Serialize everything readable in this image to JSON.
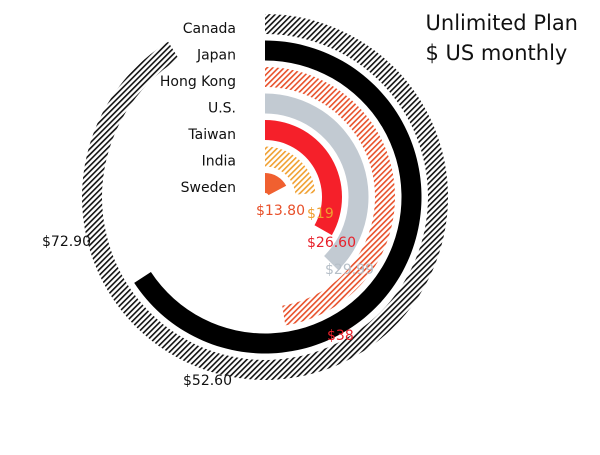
{
  "chart_data": {
    "type": "radial-bar",
    "title": "Unlimited Plan",
    "subtitle": "$ US monthly",
    "scale_max": 80,
    "series": [
      {
        "name": "Canada",
        "value": 72.9,
        "value_label": "$72.90",
        "color": "#111111",
        "fill": "hatch",
        "label_color": "#111111"
      },
      {
        "name": "Japan",
        "value": 52.6,
        "value_label": "$52.60",
        "color": "#000000",
        "fill": "solid",
        "label_color": "#111111"
      },
      {
        "name": "Hong Kong",
        "value": 38,
        "value_label": "$38",
        "color": "#e8502a",
        "fill": "hatch",
        "label_color": "#e8202a"
      },
      {
        "name": "U.S.",
        "value": 29.99,
        "value_label": "$29.99",
        "color": "#c2cad2",
        "fill": "solid",
        "label_color": "#b6bfc8"
      },
      {
        "name": "Taiwan",
        "value": 26.6,
        "value_label": "$26.60",
        "color": "#f5202a",
        "fill": "solid",
        "label_color": "#e8202a"
      },
      {
        "name": "India",
        "value": 19,
        "value_label": "$19",
        "color": "#f0a030",
        "fill": "hatch",
        "label_color": "#f0a030"
      },
      {
        "name": "Sweden",
        "value": 13.8,
        "value_label": "$13.80",
        "color": "#f06030",
        "fill": "solid",
        "label_color": "#e8502a"
      }
    ]
  }
}
